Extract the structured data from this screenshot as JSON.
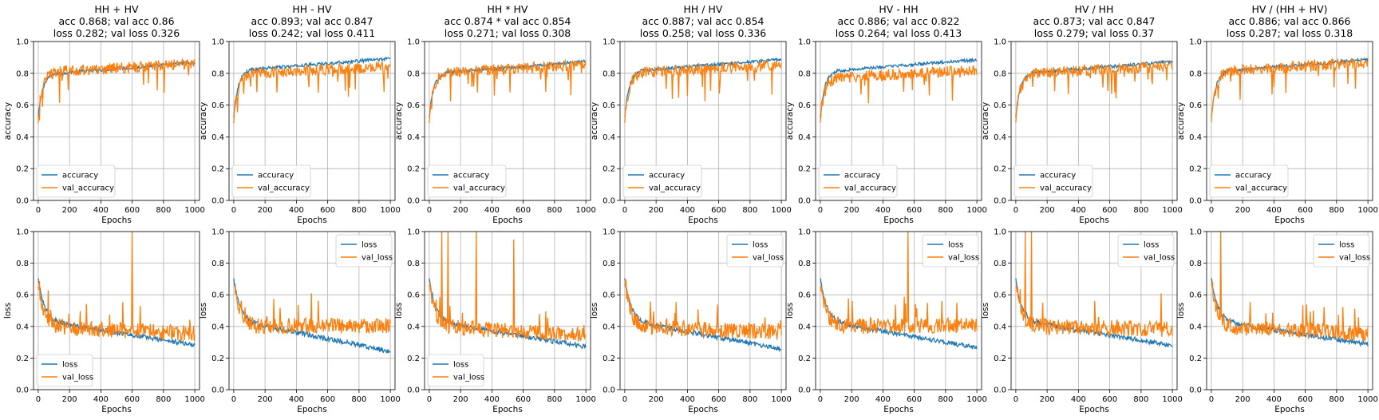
{
  "chart_data": {
    "type": "line",
    "x": {
      "label": "Epochs",
      "range": [
        -30,
        1030
      ],
      "ticks": [
        0,
        200,
        400,
        600,
        800,
        1000
      ]
    },
    "colors": {
      "accuracy": "#1f77b4",
      "val": "#ff7f0e",
      "grid": "#b0b0b0"
    },
    "grid": true,
    "panels": [
      {
        "title": "HH + HV",
        "acc": 0.868,
        "val_acc": 0.86,
        "loss": 0.282,
        "val_loss": 0.326
      },
      {
        "title": "HH - HV",
        "acc": 0.893,
        "val_acc": 0.847,
        "loss": 0.242,
        "val_loss": 0.411
      },
      {
        "title": "HH * HV",
        "acc": 0.874,
        "val_acc": 0.854,
        "loss": 0.271,
        "val_loss": 0.308,
        "star": "*"
      },
      {
        "title": "HH / HV",
        "acc": 0.887,
        "val_acc": 0.854,
        "loss": 0.258,
        "val_loss": 0.336
      },
      {
        "title": "HV - HH",
        "acc": 0.886,
        "val_acc": 0.822,
        "loss": 0.264,
        "val_loss": 0.413
      },
      {
        "title": "HV / HH",
        "acc": 0.873,
        "val_acc": 0.847,
        "loss": 0.279,
        "val_loss": 0.37
      },
      {
        "title": "HV / (HH + HV)",
        "acc": 0.886,
        "val_acc": 0.866,
        "loss": 0.287,
        "val_loss": 0.318
      }
    ],
    "subtitles": [
      [
        "acc 0.868; val acc 0.86",
        "loss 0.282; val loss 0.326"
      ],
      [
        "acc 0.893; val acc 0.847",
        "loss 0.242; val loss 0.411"
      ],
      [
        "acc 0.874 * val acc 0.854",
        "loss 0.271; val loss 0.308"
      ],
      [
        "acc 0.887; val acc 0.854",
        "loss 0.258; val loss 0.336"
      ],
      [
        "acc 0.886; val acc 0.822",
        "loss 0.264; val loss 0.413"
      ],
      [
        "acc 0.873; val acc 0.847",
        "loss 0.279; val loss 0.37"
      ],
      [
        "acc 0.886; val acc 0.866",
        "loss 0.287; val loss 0.318"
      ]
    ],
    "rows": [
      {
        "metric": "accuracy",
        "ylabel": "accuracy",
        "ylim": [
          0,
          1
        ],
        "yticks": [
          "0.0",
          "0.2",
          "0.4",
          "0.6",
          "0.8",
          "1.0"
        ],
        "legend": [
          "accuracy",
          "val_accuracy"
        ],
        "legend_loc": "lower-left"
      },
      {
        "metric": "loss",
        "ylabel": "loss",
        "ylim": [
          0,
          1
        ],
        "yticks": [
          "0.0",
          "0.2",
          "0.4",
          "0.6",
          "0.8",
          "1.0"
        ],
        "legend": [
          "loss",
          "val_loss"
        ]
      }
    ],
    "loss_legend_loc": [
      "lower-left",
      "upper-right",
      "lower-left",
      "upper-right",
      "upper-right",
      "upper-right",
      "upper-right"
    ],
    "series_shape": {
      "accuracy": {
        "start": 0.5,
        "plateau_at_epoch_100": 0.8
      },
      "val_accuracy": {
        "start": 0.5,
        "plateau_at_epoch_100": 0.79
      },
      "loss": {
        "start": 0.7,
        "at_epoch_100": 0.44
      },
      "val_loss": {
        "start": 0.7,
        "at_epoch_100": 0.44
      }
    },
    "spikes": [
      [
        [
          600,
          1.0
        ]
      ],
      [],
      [
        [
          80,
          1.0
        ],
        [
          120,
          1.0
        ],
        [
          300,
          1.0
        ],
        [
          540,
          0.95
        ]
      ],
      [],
      [
        [
          560,
          1.0
        ]
      ],
      [
        [
          60,
          1.0
        ],
        [
          100,
          1.0
        ]
      ],
      [
        [
          60,
          1.0
        ]
      ]
    ]
  }
}
